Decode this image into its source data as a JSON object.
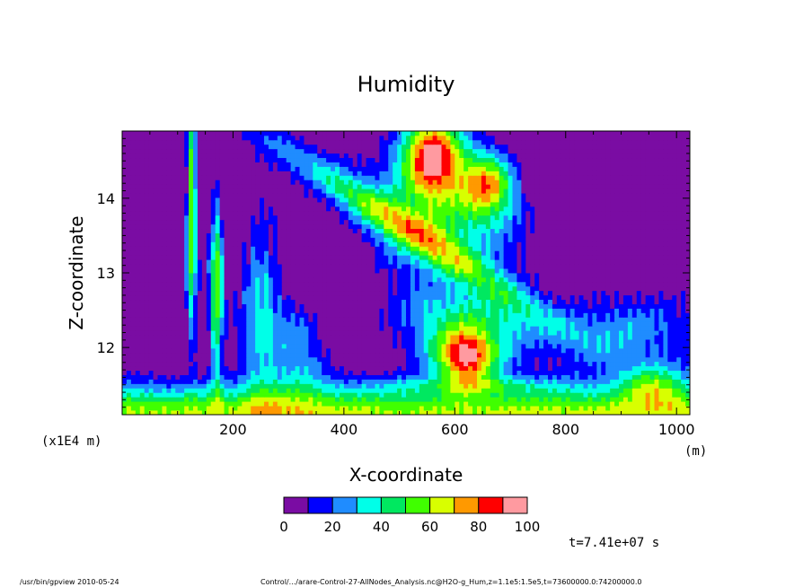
{
  "chart_data": {
    "type": "heatmap",
    "title": "Humidity",
    "xlabel": "X-coordinate",
    "ylabel": "Z-coordinate",
    "x_units": "(m)",
    "y_units": "(x1E4 m)",
    "xlim": [
      0,
      1024
    ],
    "ylim": [
      11.1,
      14.9
    ],
    "x_ticks": [
      200,
      400,
      600,
      800,
      1000
    ],
    "y_ticks": [
      12,
      13,
      14
    ],
    "colorbar": {
      "levels": [
        0,
        10,
        20,
        30,
        40,
        50,
        60,
        70,
        80,
        90,
        100
      ],
      "tick_labels": [
        "0",
        "20",
        "40",
        "60",
        "80",
        "100"
      ],
      "colors": [
        "#7a0ca3",
        "#0000ff",
        "#1f8cff",
        "#00ffe8",
        "#00e860",
        "#40ff00",
        "#d8ff00",
        "#ff9900",
        "#ff0000",
        "#ff9aa0"
      ]
    },
    "time_label": "t=7.41e+07 s",
    "grid": false,
    "legend": "colorbar-bottom"
  },
  "footer": {
    "program": "/usr/bin/gpview   2010-05-24",
    "source": "Control/.../arare-Control-27-AllNodes_Analysis.nc@H2O-g_Hum,z=1.1e5:1.5e5,t=73600000.0:74200000.0"
  }
}
